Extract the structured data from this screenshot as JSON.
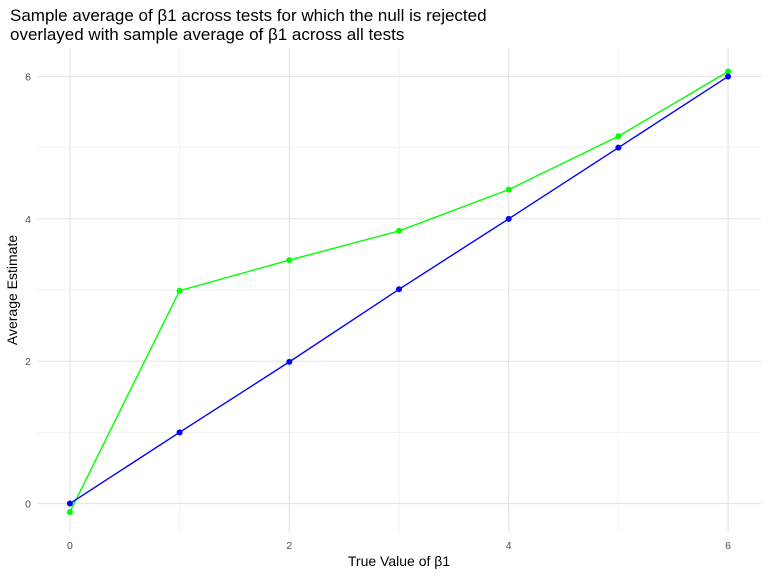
{
  "chart_data": {
    "type": "line",
    "title_lines": [
      "Sample average of β1 across tests for which the null is rejected",
      "overlayed with sample average of β1 across all tests"
    ],
    "xlabel": "True Value of β1",
    "ylabel": "Average Estimate",
    "xlim": [
      -0.3,
      6.3
    ],
    "ylim": [
      -0.4,
      6.4
    ],
    "xticks": [
      0,
      2,
      4,
      6
    ],
    "yticks": [
      0,
      2,
      4,
      6
    ],
    "grid": true,
    "x": [
      0,
      1,
      2,
      3,
      4,
      5,
      6
    ],
    "series": [
      {
        "color": "#00ff00",
        "values": [
          -0.12,
          2.99,
          3.42,
          3.83,
          4.41,
          5.16,
          6.07
        ]
      },
      {
        "color": "#0000ff",
        "values": [
          0.0,
          1.0,
          1.99,
          3.01,
          4.0,
          5.0,
          6.0
        ]
      }
    ]
  }
}
